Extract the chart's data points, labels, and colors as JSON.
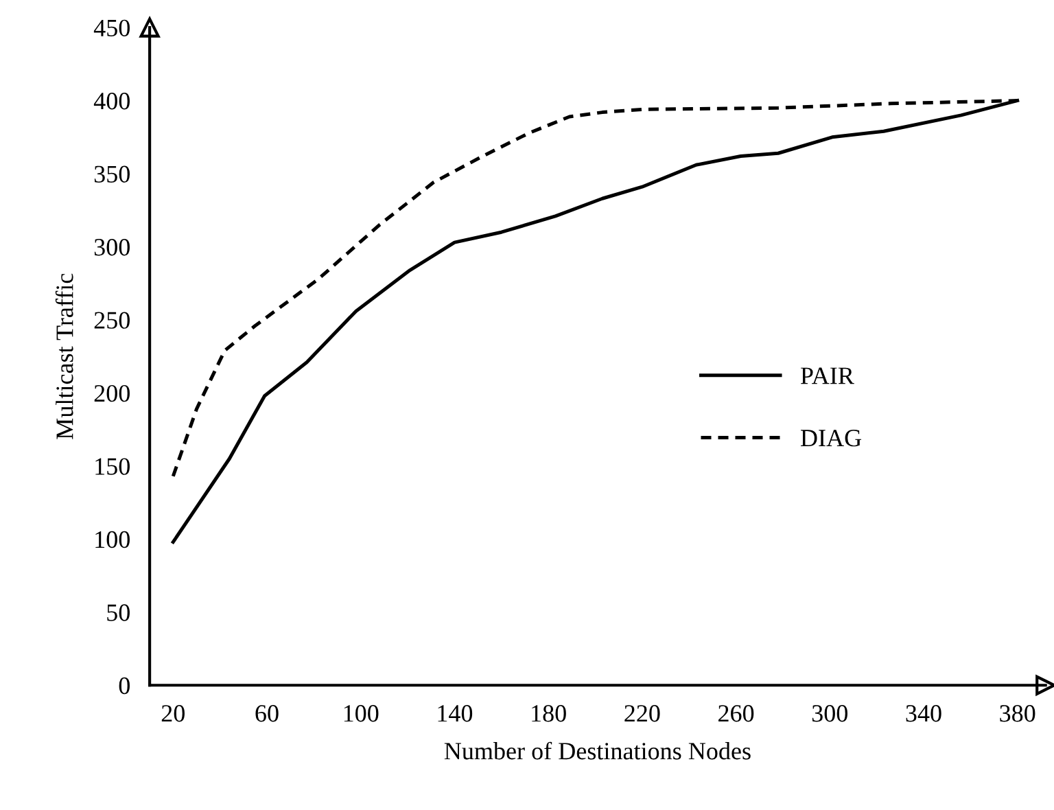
{
  "chart_data": {
    "type": "line",
    "xlabel": "Number of Destinations Nodes",
    "ylabel": "Multicast Traffic",
    "xlim": [
      10,
      392
    ],
    "xticks": [
      20,
      60,
      100,
      140,
      180,
      220,
      260,
      300,
      340,
      380
    ],
    "ylim": [
      0,
      450
    ],
    "yticks": [
      0,
      50,
      100,
      150,
      200,
      250,
      300,
      350,
      400,
      450
    ],
    "grid": false,
    "legend": "right",
    "marker": "none",
    "series": [
      {
        "name": "PAIR",
        "color": "#000000",
        "line_style": "solid",
        "x": [
          20,
          44,
          59,
          77,
          98,
          121,
          140,
          160,
          183,
          203,
          220,
          243,
          262,
          278,
          301,
          323,
          356,
          380
        ],
        "values": [
          98,
          155,
          198,
          221,
          256,
          284,
          303,
          310,
          321,
          333,
          341,
          356,
          362,
          364,
          375,
          379,
          390,
          400
        ]
      },
      {
        "name": "DIAG",
        "color": "#000000",
        "line_style": "dashed",
        "x": [
          20,
          30,
          42,
          55,
          82,
          108,
          131,
          152,
          172,
          189,
          203,
          220,
          278,
          326,
          380
        ],
        "values": [
          143,
          189,
          229,
          246,
          278,
          315,
          344,
          362,
          378,
          389,
          392,
          394,
          395,
          398,
          400
        ]
      }
    ]
  }
}
